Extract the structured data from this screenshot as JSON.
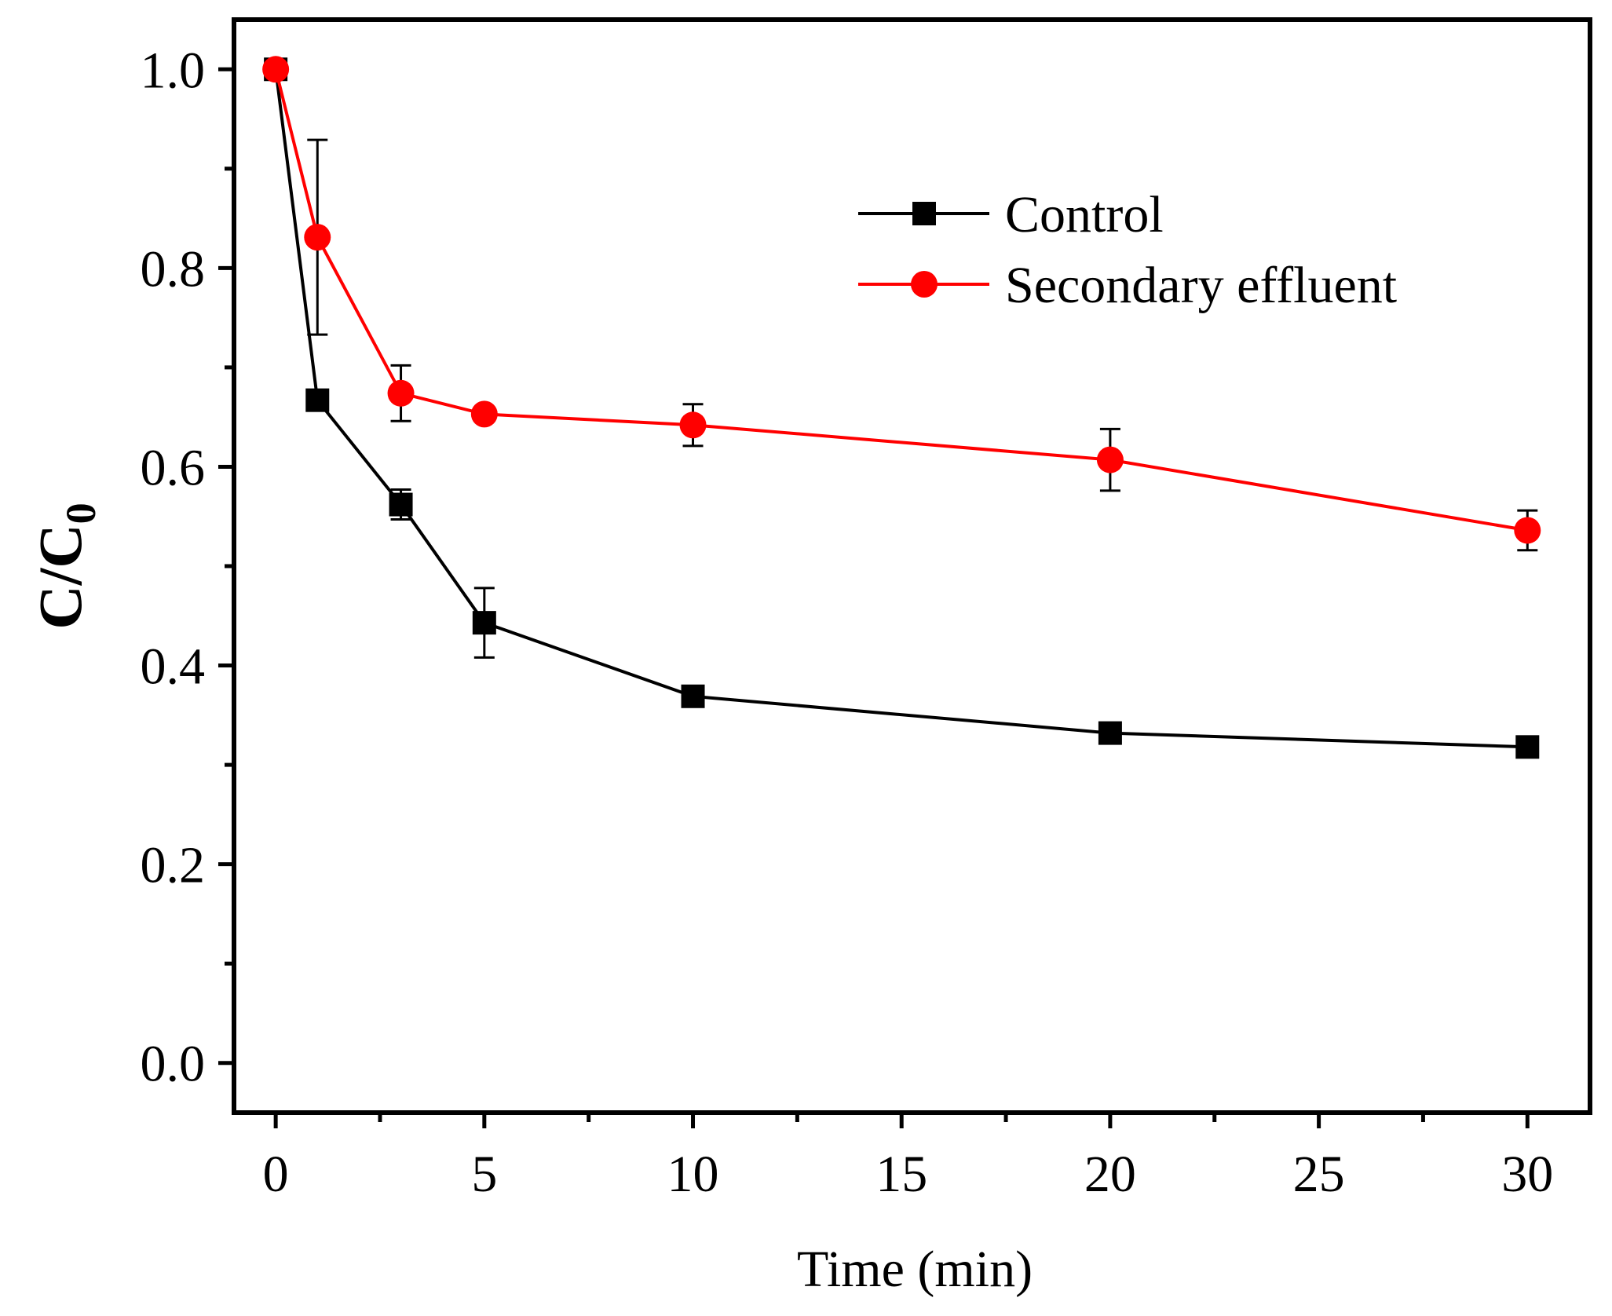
{
  "chart_data": {
    "type": "line",
    "title": "",
    "xlabel": "Time (min)",
    "ylabel": {
      "base": "C/C",
      "subscript": "0"
    },
    "xlim": [
      -1,
      31.5
    ],
    "ylim": [
      -0.05,
      1.05
    ],
    "xticks": [
      0,
      5,
      10,
      15,
      20,
      25,
      30
    ],
    "xtick_labels": [
      "0",
      "5",
      "10",
      "15",
      "20",
      "25",
      "30"
    ],
    "yticks": [
      0.0,
      0.2,
      0.4,
      0.6,
      0.8,
      1.0
    ],
    "ytick_labels": [
      "0.0",
      "0.2",
      "0.4",
      "0.6",
      "0.8",
      "1.0"
    ],
    "x_minor_ticks": [
      2.5,
      7.5,
      12.5,
      17.5,
      22.5,
      27.5
    ],
    "y_minor_ticks": [
      0.1,
      0.3,
      0.5,
      0.7,
      0.9
    ],
    "grid": false,
    "legend_position": "top-right",
    "x": [
      0,
      1,
      3,
      5,
      10,
      20,
      30
    ],
    "series": [
      {
        "name": "Control",
        "color": "#000000",
        "marker": "square",
        "values": [
          1.0,
          0.667,
          0.562,
          0.443,
          0.369,
          0.332,
          0.318
        ],
        "errors": [
          0.0,
          0.0,
          0.015,
          0.035,
          0.0,
          0.0,
          0.0
        ]
      },
      {
        "name": "Secondary effluent",
        "color": "#ff0000",
        "marker": "circle",
        "values": [
          1.0,
          0.831,
          0.674,
          0.653,
          0.642,
          0.607,
          0.536
        ],
        "errors": [
          0.0,
          0.098,
          0.028,
          0.0,
          0.021,
          0.031,
          0.02
        ]
      }
    ]
  }
}
